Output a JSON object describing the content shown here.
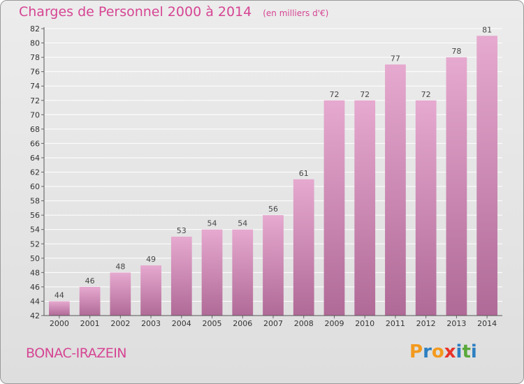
{
  "header": {
    "title": "Charges de Personnel 2000 à 2014",
    "subtitle": "(en milliers d'€)"
  },
  "footer": {
    "commune": "BONAC-IRAZEIN",
    "logo_letters": [
      "P",
      "r",
      "o",
      "x",
      "i",
      "t",
      "i"
    ]
  },
  "colors": {
    "title": "#d64593",
    "bar_top": "#e6a9cf",
    "bar_bottom": "#b06a97",
    "grid": "#ffffff",
    "logo": [
      "#f39a1e",
      "#2d7fc1",
      "#f39a1e",
      "#e8332a",
      "#2d7fc1",
      "#59a83a",
      "#2d7fc1"
    ]
  },
  "chart_data": {
    "type": "bar",
    "title": "Charges de Personnel 2000 à 2014",
    "subtitle": "(en milliers d'€)",
    "categories": [
      "2000",
      "2001",
      "2002",
      "2003",
      "2004",
      "2005",
      "2006",
      "2007",
      "2008",
      "2009",
      "2010",
      "2011",
      "2012",
      "2013",
      "2014"
    ],
    "values": [
      44,
      46,
      48,
      49,
      53,
      54,
      54,
      56,
      61,
      72,
      72,
      77,
      72,
      78,
      81
    ],
    "ylim": [
      42,
      82
    ],
    "ytick_step": 2,
    "grid": true,
    "xlabel": "",
    "ylabel": ""
  }
}
